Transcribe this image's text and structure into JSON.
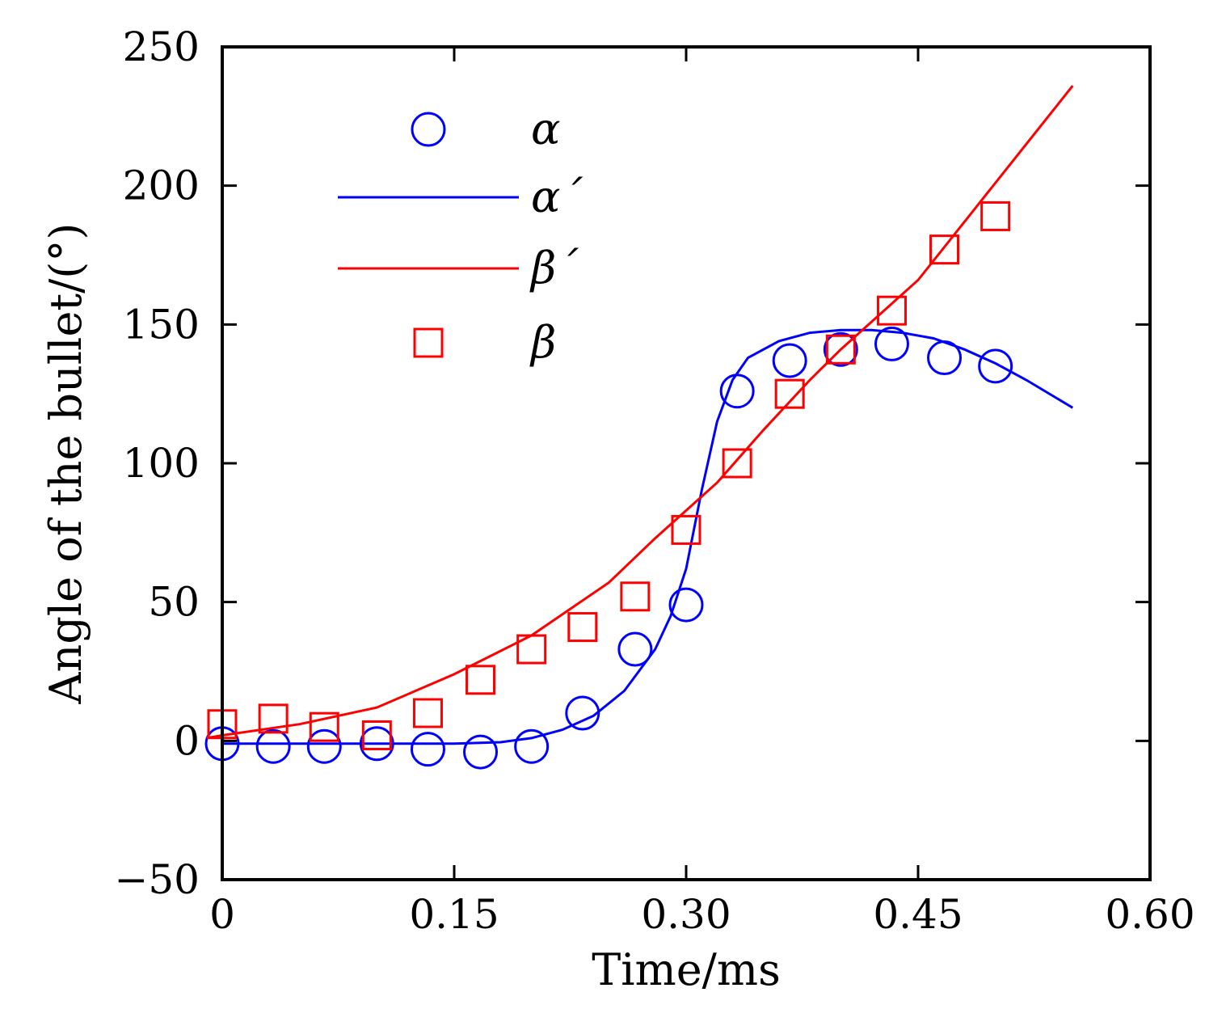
{
  "chart_data": {
    "type": "line",
    "title": "",
    "xlabel": "Time/ms",
    "ylabel": "Angle of the bullet/(°)",
    "xlim": [
      0,
      0.6
    ],
    "ylim": [
      -50,
      250
    ],
    "x_ticks": [
      0,
      0.15,
      0.3,
      0.45,
      0.6
    ],
    "x_tick_labels": [
      "0",
      "0.15",
      "0.30",
      "0.45",
      "0.60"
    ],
    "y_ticks": [
      -50,
      0,
      50,
      100,
      150,
      200,
      250
    ],
    "y_tick_labels": [
      "−50",
      "0",
      "50",
      "100",
      "150",
      "200",
      "250"
    ],
    "grid": false,
    "legend_position": "top-left",
    "series": [
      {
        "name": "α",
        "kind": "scatter",
        "marker": "circle",
        "color": "#0000ff",
        "x": [
          0.0,
          0.033,
          0.066,
          0.1,
          0.133,
          0.167,
          0.2,
          0.233,
          0.267,
          0.3,
          0.333,
          0.367,
          0.4,
          0.433,
          0.467,
          0.5
        ],
        "y": [
          -1,
          -2,
          -2,
          -1,
          -3,
          -4,
          -2,
          10,
          33,
          49,
          126,
          137,
          141,
          143,
          138,
          135
        ]
      },
      {
        "name": "α´",
        "kind": "line",
        "color": "#0000ff",
        "x": [
          0.0,
          0.05,
          0.1,
          0.15,
          0.18,
          0.2,
          0.22,
          0.24,
          0.26,
          0.28,
          0.29,
          0.3,
          0.31,
          0.32,
          0.33,
          0.34,
          0.36,
          0.38,
          0.4,
          0.42,
          0.44,
          0.46,
          0.48,
          0.5,
          0.52,
          0.55
        ],
        "y": [
          -1,
          -1,
          -1,
          -1,
          -0.5,
          1,
          4,
          9,
          18,
          33,
          45,
          62,
          90,
          115,
          130,
          138,
          144,
          147,
          148,
          148,
          147,
          145,
          141,
          136,
          130,
          120
        ]
      },
      {
        "name": "β´",
        "kind": "line",
        "color": "#ff0000",
        "x": [
          -0.01,
          0.0,
          0.05,
          0.1,
          0.15,
          0.2,
          0.25,
          0.28,
          0.3,
          0.32,
          0.35,
          0.38,
          0.4,
          0.45,
          0.5,
          0.55
        ],
        "y": [
          1,
          2,
          6,
          12,
          24,
          38,
          57,
          73,
          83,
          93,
          112,
          130,
          141,
          166,
          201,
          236
        ]
      },
      {
        "name": "β",
        "kind": "scatter",
        "marker": "square",
        "color": "#ff0000",
        "x": [
          0.0,
          0.033,
          0.066,
          0.1,
          0.133,
          0.167,
          0.2,
          0.233,
          0.267,
          0.3,
          0.333,
          0.367,
          0.4,
          0.433,
          0.467,
          0.5
        ],
        "y": [
          6,
          8,
          5,
          2,
          10,
          22,
          33,
          41,
          52,
          76,
          100,
          125,
          141,
          155,
          177,
          189
        ]
      }
    ]
  }
}
